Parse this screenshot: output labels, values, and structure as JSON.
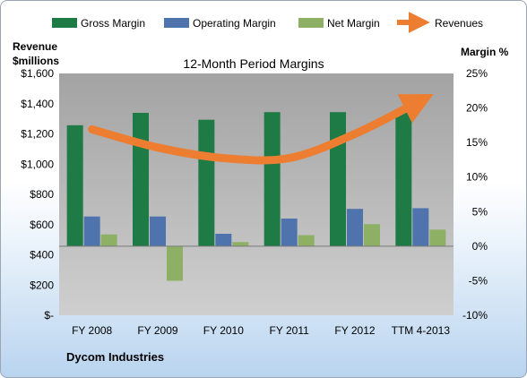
{
  "chart_data": {
    "type": "bar",
    "title": "12-Month Period Margins",
    "company": "Dycom Industries",
    "y_left_label_line1": "Revenue",
    "y_left_label_line2": "$millions",
    "y_right_label": "Margin %",
    "categories": [
      "FY 2008",
      "FY 2009",
      "FY 2010",
      "FY 2011",
      "FY 2012",
      "TTM 4-2013"
    ],
    "left_axis": {
      "min": 0,
      "max": 1600,
      "ticks": [
        0,
        200,
        400,
        600,
        800,
        1000,
        1200,
        1400,
        1600
      ],
      "tick_labels": [
        "$-",
        "$200",
        "$400",
        "$600",
        "$800",
        "$1,000",
        "$1,200",
        "$1,400",
        "$1,600"
      ]
    },
    "right_axis": {
      "min": -10,
      "max": 25,
      "ticks": [
        -10,
        -5,
        0,
        5,
        10,
        15,
        20,
        25
      ],
      "tick_labels": [
        "-10%",
        "-5%",
        "0%",
        "5%",
        "10%",
        "15%",
        "20%",
        "25%"
      ]
    },
    "series": [
      {
        "name": "Gross Margin",
        "kind": "bar",
        "axis": "right",
        "color": "#1e7b45",
        "values": [
          17.5,
          19.3,
          18.3,
          19.4,
          19.4,
          19.3
        ]
      },
      {
        "name": "Operating Margin",
        "kind": "bar",
        "axis": "right",
        "color": "#4f74ad",
        "values": [
          4.3,
          4.3,
          1.8,
          4.0,
          5.4,
          5.5
        ]
      },
      {
        "name": "Net Margin",
        "kind": "bar",
        "axis": "right",
        "color": "#8eb065",
        "values": [
          1.7,
          -5.0,
          0.6,
          1.6,
          3.2,
          2.4
        ]
      },
      {
        "name": "Revenues",
        "kind": "line",
        "axis": "left",
        "color": "#ed7d31",
        "values": [
          1230,
          1110,
          1040,
          1040,
          1200,
          1420
        ]
      }
    ],
    "grid": false,
    "legend_position": "top"
  }
}
